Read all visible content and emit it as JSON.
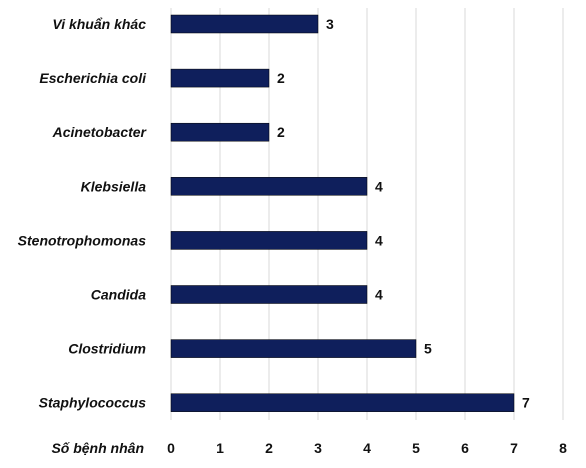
{
  "chart_data": {
    "type": "bar",
    "orientation": "horizontal",
    "categories": [
      "Vi khuẩn khác",
      "Escherichia coli",
      "Acinetobacter",
      "Klebsiella",
      "Stenotrophomonas",
      "Candida",
      "Clostridium",
      "Staphylococcus"
    ],
    "values": [
      3,
      2,
      2,
      4,
      4,
      4,
      5,
      7
    ],
    "data_labels": [
      "3",
      "2",
      "2",
      "4",
      "4",
      "4",
      "5",
      "7"
    ],
    "xlabel": "Số bệnh nhân",
    "xlim": [
      0,
      8
    ],
    "xticks": [
      "0",
      "1",
      "2",
      "3",
      "4",
      "5",
      "6",
      "7",
      "8"
    ],
    "grid": true,
    "bar_color": "#0f1f5c",
    "grid_color": "#d9d9d9"
  }
}
